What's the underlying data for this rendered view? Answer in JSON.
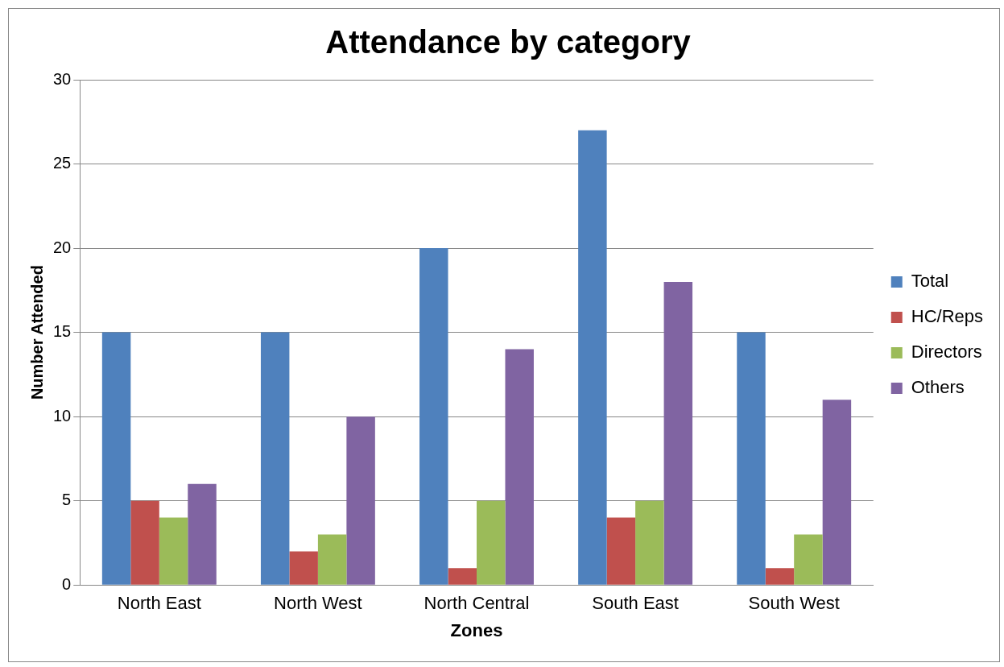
{
  "chart_data": {
    "type": "bar",
    "title": "Attendance by category",
    "xlabel": "Zones",
    "ylabel": "Number Attended",
    "categories": [
      "North East",
      "North West",
      "North Central",
      "South East",
      "South West"
    ],
    "series": [
      {
        "name": "Total",
        "color": "#4f81bd",
        "values": [
          15,
          15,
          20,
          27,
          15
        ]
      },
      {
        "name": "HC/Reps",
        "color": "#c0504d",
        "values": [
          5,
          2,
          1,
          4,
          1
        ]
      },
      {
        "name": "Directors",
        "color": "#9bbb59",
        "values": [
          4,
          3,
          5,
          5,
          3
        ]
      },
      {
        "name": "Others",
        "color": "#8064a2",
        "values": [
          6,
          10,
          14,
          18,
          11
        ]
      }
    ],
    "ylim": [
      0,
      30
    ],
    "yticks": [
      0,
      5,
      10,
      15,
      20,
      25,
      30
    ],
    "grid": "y",
    "legend": "right"
  }
}
